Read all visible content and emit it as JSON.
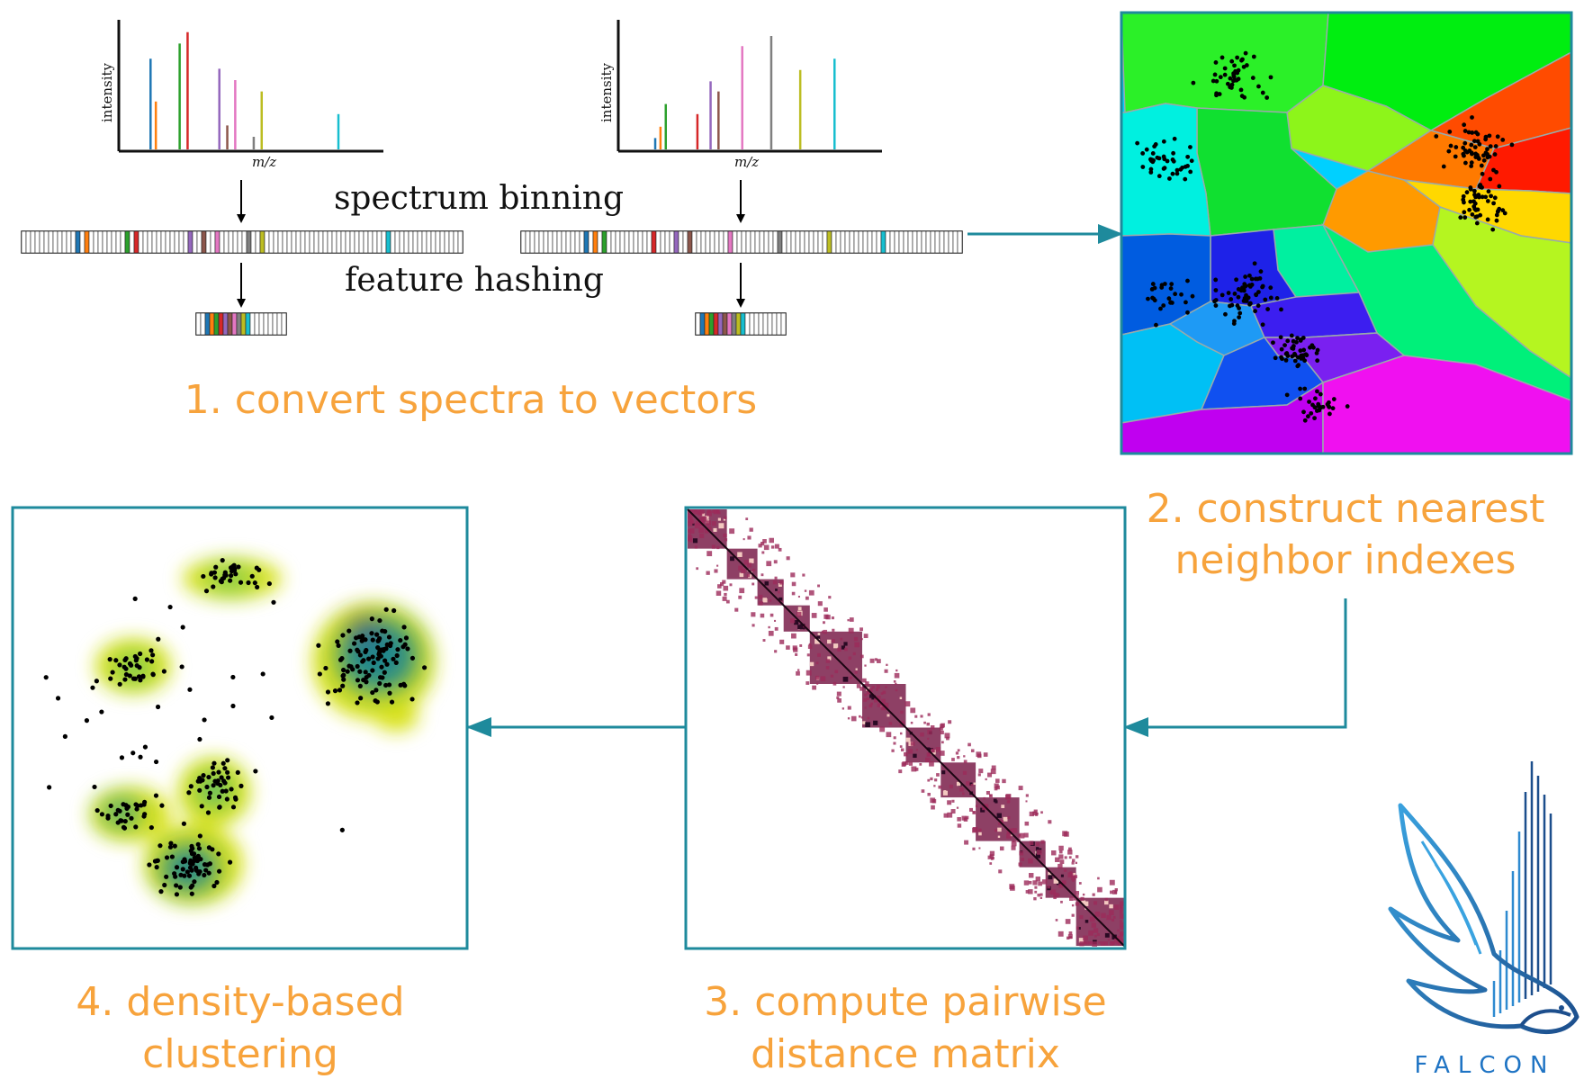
{
  "steps": {
    "step1": "1. convert spectra to vectors",
    "step2_line1": "2. construct nearest",
    "step2_line2": "neighbor indexes",
    "step3_line1": "3. compute pairwise",
    "step3_line2": "distance matrix",
    "step4_line1": "4. density-based",
    "step4_line2": "clustering"
  },
  "labels": {
    "spectrum_binning": "spectrum binning",
    "feature_hashing": "feature hashing",
    "y_axis": "intensity",
    "x_axis": "m/z"
  },
  "brand": {
    "name": "FALCON"
  },
  "colors": {
    "accent": "#F7A33C",
    "frame": "#1E8A9C",
    "arrow": "#1E8A9C",
    "falcon_light": "#3AA3E0",
    "falcon_dark": "#1C4E8C"
  },
  "spectra": [
    {
      "name": "spectrum-a",
      "peaks": [
        {
          "mz": 0.12,
          "intensity": 0.72,
          "color": "#1f77b4"
        },
        {
          "mz": 0.14,
          "intensity": 0.38,
          "color": "#ff7f0e"
        },
        {
          "mz": 0.23,
          "intensity": 0.84,
          "color": "#2ca02c"
        },
        {
          "mz": 0.26,
          "intensity": 0.93,
          "color": "#d62728"
        },
        {
          "mz": 0.38,
          "intensity": 0.64,
          "color": "#9467bd"
        },
        {
          "mz": 0.41,
          "intensity": 0.19,
          "color": "#8c564b"
        },
        {
          "mz": 0.44,
          "intensity": 0.55,
          "color": "#e377c2"
        },
        {
          "mz": 0.51,
          "intensity": 0.1,
          "color": "#7f7f7f"
        },
        {
          "mz": 0.54,
          "intensity": 0.46,
          "color": "#bcbd22"
        },
        {
          "mz": 0.83,
          "intensity": 0.28,
          "color": "#17becf"
        }
      ]
    },
    {
      "name": "spectrum-b",
      "peaks": [
        {
          "mz": 0.14,
          "intensity": 0.09,
          "color": "#1f77b4"
        },
        {
          "mz": 0.16,
          "intensity": 0.18,
          "color": "#ff7f0e"
        },
        {
          "mz": 0.18,
          "intensity": 0.36,
          "color": "#2ca02c"
        },
        {
          "mz": 0.3,
          "intensity": 0.28,
          "color": "#d62728"
        },
        {
          "mz": 0.35,
          "intensity": 0.54,
          "color": "#9467bd"
        },
        {
          "mz": 0.38,
          "intensity": 0.46,
          "color": "#8c564b"
        },
        {
          "mz": 0.47,
          "intensity": 0.82,
          "color": "#e377c2"
        },
        {
          "mz": 0.58,
          "intensity": 0.9,
          "color": "#7f7f7f"
        },
        {
          "mz": 0.69,
          "intensity": 0.63,
          "color": "#bcbd22"
        },
        {
          "mz": 0.82,
          "intensity": 0.72,
          "color": "#17becf"
        }
      ]
    }
  ]
}
